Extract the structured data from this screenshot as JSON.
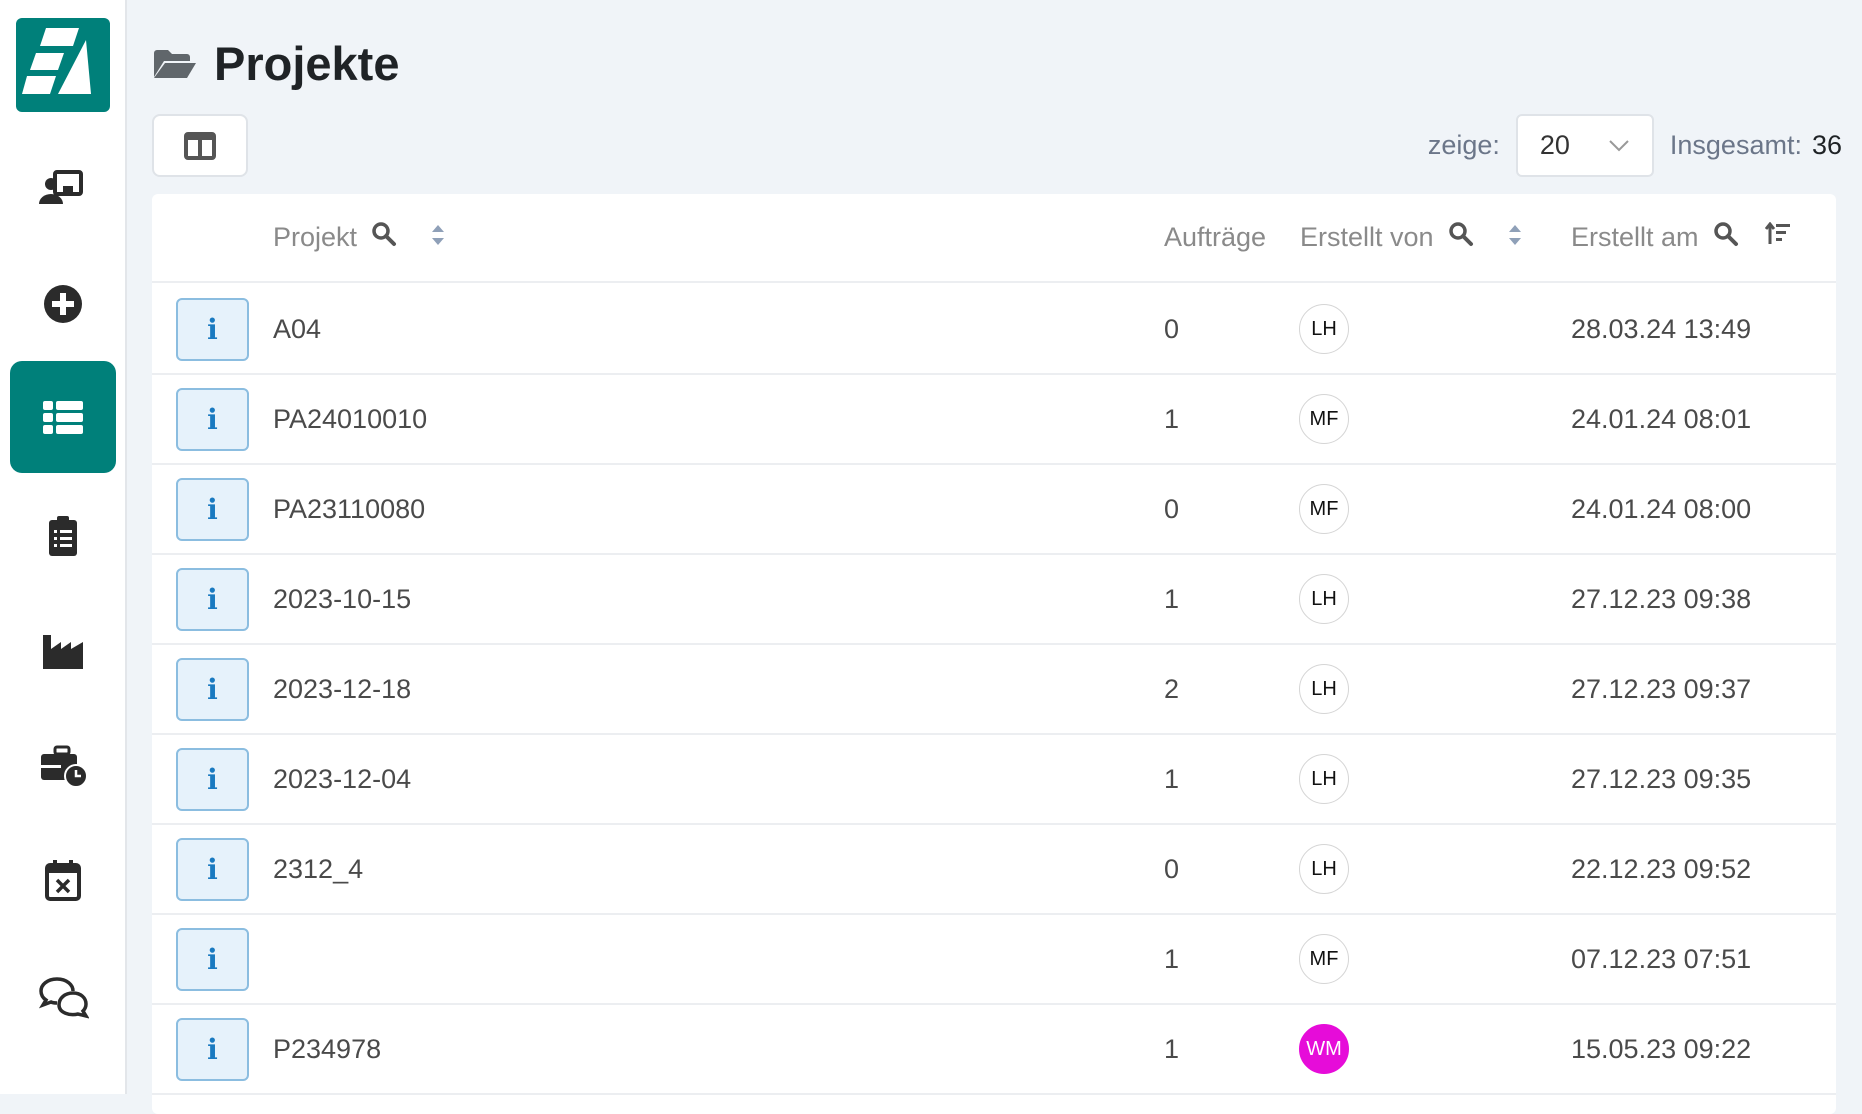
{
  "app": {
    "brand_color": "#00807a",
    "avatar_highlight_color": "#e60cd9"
  },
  "sidebar": {
    "items": [
      {
        "icon": "presentation-user-icon"
      },
      {
        "icon": "plus-circle-icon"
      },
      {
        "icon": "list-icon",
        "active": true
      },
      {
        "icon": "clipboard-list-icon"
      },
      {
        "icon": "industry-icon"
      },
      {
        "icon": "briefcase-clock-icon"
      },
      {
        "icon": "calendar-xmark-icon"
      },
      {
        "icon": "comments-icon"
      }
    ]
  },
  "page": {
    "title": "Projekte",
    "icon": "folder-open-icon"
  },
  "toolbar": {
    "columns_icon": "columns-icon",
    "show_label": "zeige:",
    "page_size": "20",
    "total_label": "Insgesamt:",
    "total": "36"
  },
  "table": {
    "headers": {
      "project": "Projekt",
      "orders": "Aufträge",
      "created_by": "Erstellt von",
      "created_at": "Erstellt am"
    },
    "rows": [
      {
        "project": "A04",
        "orders": "0",
        "by": "LH",
        "at": "28.03.24 13:49"
      },
      {
        "project": "PA24010010",
        "orders": "1",
        "by": "MF",
        "at": "24.01.24 08:01"
      },
      {
        "project": "PA23110080",
        "orders": "0",
        "by": "MF",
        "at": "24.01.24 08:00"
      },
      {
        "project": "2023-10-15",
        "orders": "1",
        "by": "LH",
        "at": "27.12.23 09:38"
      },
      {
        "project": "2023-12-18",
        "orders": "2",
        "by": "LH",
        "at": "27.12.23 09:37"
      },
      {
        "project": "2023-12-04",
        "orders": "1",
        "by": "LH",
        "at": "27.12.23 09:35"
      },
      {
        "project": "2312_4",
        "orders": "0",
        "by": "LH",
        "at": "22.12.23 09:52"
      },
      {
        "project": "",
        "orders": "1",
        "by": "MF",
        "at": "07.12.23 07:51"
      },
      {
        "project": "P234978",
        "orders": "1",
        "by": "WM",
        "at": "15.05.23 09:22",
        "highlight": true
      }
    ]
  }
}
